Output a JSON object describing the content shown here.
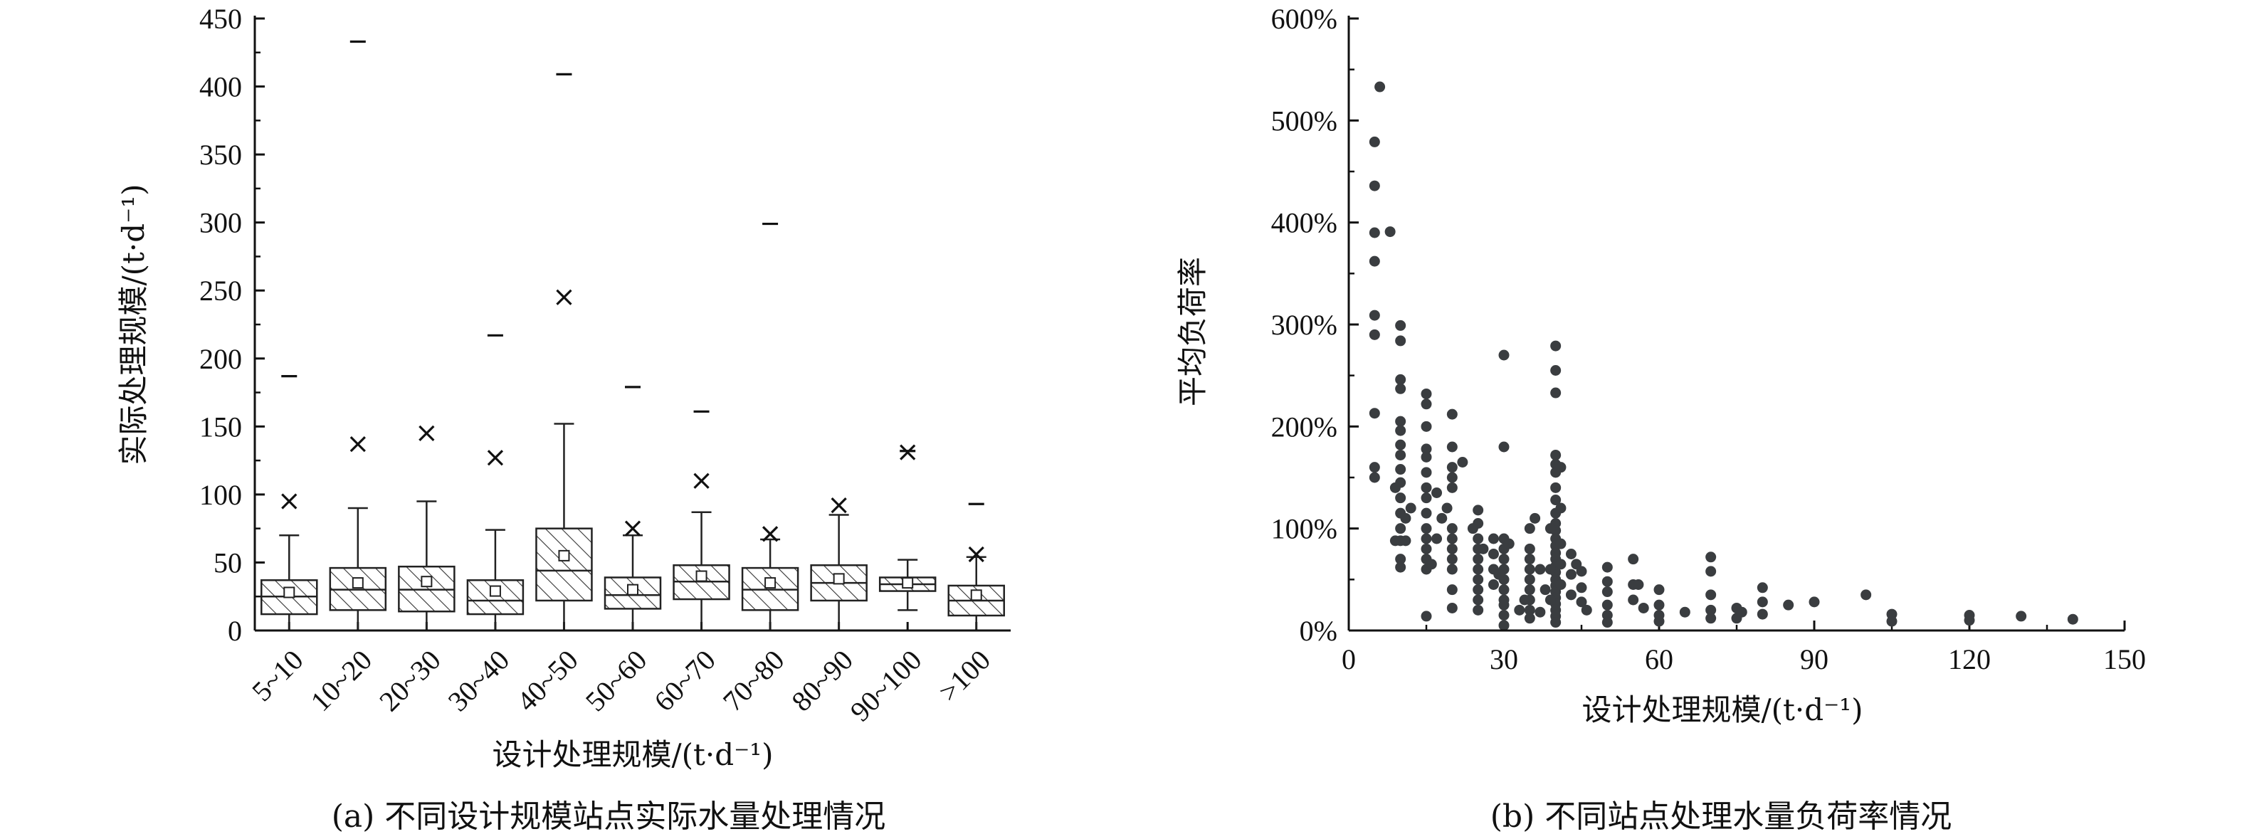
{
  "captions": {
    "a": "(a) 不同设计规模站点实际水量处理情况",
    "b": "(b) 不同站点处理水量负荷率情况"
  },
  "chart_data": [
    {
      "type": "box",
      "title": "",
      "xlabel": "设计处理规模/(t·d⁻¹)",
      "ylabel": "实际处理规模/(t·d⁻¹)",
      "ylim": [
        0,
        450
      ],
      "yticks": [
        "0",
        "50",
        "100",
        "150",
        "200",
        "250",
        "300",
        "350",
        "400",
        "450"
      ],
      "categories": [
        "5~10",
        "10~20",
        "20~30",
        "30~40",
        "40~50",
        "50~60",
        "60~70",
        "70~80",
        "80~90",
        "90~100",
        ">100"
      ],
      "boxes": [
        {
          "min": 0,
          "q1": 12,
          "median": 25,
          "q3": 37,
          "max": 70,
          "mean": 28,
          "p99": 95,
          "max_outlier": 187
        },
        {
          "min": 0,
          "q1": 15,
          "median": 30,
          "q3": 46,
          "max": 90,
          "mean": 35,
          "p99": 137,
          "max_outlier": 433
        },
        {
          "min": 0,
          "q1": 14,
          "median": 30,
          "q3": 47,
          "max": 95,
          "mean": 36,
          "p99": 145,
          "max_outlier": null
        },
        {
          "min": 0,
          "q1": 12,
          "median": 22,
          "q3": 37,
          "max": 74,
          "mean": 29,
          "p99": 127,
          "max_outlier": 217
        },
        {
          "min": 0,
          "q1": 22,
          "median": 44,
          "q3": 75,
          "max": 152,
          "mean": 55,
          "p99": 245,
          "max_outlier": 409
        },
        {
          "min": 0,
          "q1": 16,
          "median": 26,
          "q3": 39,
          "max": 70,
          "mean": 30,
          "p99": 75,
          "max_outlier": 179
        },
        {
          "min": 0,
          "q1": 23,
          "median": 36,
          "q3": 48,
          "max": 87,
          "mean": 40,
          "p99": 110,
          "max_outlier": 161
        },
        {
          "min": 0,
          "q1": 15,
          "median": 30,
          "q3": 46,
          "max": 67,
          "mean": 35,
          "p99": 71,
          "max_outlier": 299
        },
        {
          "min": 0,
          "q1": 22,
          "median": 35,
          "q3": 48,
          "max": 85,
          "mean": 38,
          "p99": 92,
          "max_outlier": null
        },
        {
          "min": 15,
          "q1": 29,
          "median": 34,
          "q3": 39,
          "max": 52,
          "mean": 35,
          "p99": 131,
          "max_outlier": 132
        },
        {
          "min": 0,
          "q1": 11,
          "median": 22,
          "q3": 33,
          "max": 54,
          "mean": 26,
          "p99": 56,
          "max_outlier": 93
        }
      ]
    },
    {
      "type": "scatter",
      "title": "",
      "xlabel": "设计处理规模/(t·d⁻¹)",
      "ylabel": "平均负荷率",
      "xlim": [
        0,
        150
      ],
      "ylim": [
        0,
        600
      ],
      "xticks": [
        "0",
        "30",
        "60",
        "90",
        "120",
        "150"
      ],
      "yticks": [
        "0%",
        "100%",
        "200%",
        "300%",
        "400%",
        "500%",
        "600%"
      ],
      "color": "#3a3d40",
      "points": [
        [
          6,
          533
        ],
        [
          5,
          479
        ],
        [
          5,
          436
        ],
        [
          8,
          391
        ],
        [
          5,
          390
        ],
        [
          5,
          362
        ],
        [
          5,
          309
        ],
        [
          5,
          290
        ],
        [
          5,
          213
        ],
        [
          5,
          160
        ],
        [
          5,
          150
        ],
        [
          10,
          299
        ],
        [
          10,
          284
        ],
        [
          10,
          246
        ],
        [
          10,
          237
        ],
        [
          10,
          205
        ],
        [
          10,
          196
        ],
        [
          10,
          182
        ],
        [
          10,
          172
        ],
        [
          10,
          158
        ],
        [
          10,
          145
        ],
        [
          10,
          130
        ],
        [
          10,
          115
        ],
        [
          10,
          100
        ],
        [
          10,
          88
        ],
        [
          10,
          70
        ],
        [
          10,
          62
        ],
        [
          9,
          140
        ],
        [
          9,
          88
        ],
        [
          11,
          110
        ],
        [
          12,
          120
        ],
        [
          11,
          88
        ],
        [
          15,
          232
        ],
        [
          15,
          222
        ],
        [
          15,
          200
        ],
        [
          15,
          178
        ],
        [
          15,
          170
        ],
        [
          15,
          155
        ],
        [
          15,
          140
        ],
        [
          15,
          130
        ],
        [
          15,
          115
        ],
        [
          15,
          100
        ],
        [
          15,
          90
        ],
        [
          15,
          80
        ],
        [
          15,
          70
        ],
        [
          15,
          60
        ],
        [
          15,
          14
        ],
        [
          17,
          135
        ],
        [
          16,
          65
        ],
        [
          20,
          212
        ],
        [
          20,
          180
        ],
        [
          20,
          160
        ],
        [
          20,
          150
        ],
        [
          20,
          140
        ],
        [
          20,
          100
        ],
        [
          20,
          90
        ],
        [
          20,
          80
        ],
        [
          20,
          70
        ],
        [
          20,
          60
        ],
        [
          20,
          40
        ],
        [
          20,
          22
        ],
        [
          22,
          165
        ],
        [
          18,
          110
        ],
        [
          17,
          90
        ],
        [
          19,
          120
        ],
        [
          25,
          118
        ],
        [
          25,
          105
        ],
        [
          25,
          90
        ],
        [
          25,
          80
        ],
        [
          25,
          70
        ],
        [
          25,
          60
        ],
        [
          25,
          50
        ],
        [
          25,
          40
        ],
        [
          25,
          30
        ],
        [
          25,
          20
        ],
        [
          26,
          80
        ],
        [
          24,
          100
        ],
        [
          28,
          90
        ],
        [
          28,
          75
        ],
        [
          28,
          60
        ],
        [
          28,
          45
        ],
        [
          30,
          270
        ],
        [
          30,
          180
        ],
        [
          30,
          90
        ],
        [
          30,
          80
        ],
        [
          30,
          70
        ],
        [
          30,
          60
        ],
        [
          30,
          50
        ],
        [
          30,
          40
        ],
        [
          30,
          30
        ],
        [
          30,
          25
        ],
        [
          30,
          15
        ],
        [
          30,
          5
        ],
        [
          31,
          85
        ],
        [
          29,
          55
        ],
        [
          33,
          20
        ],
        [
          34,
          30
        ],
        [
          35,
          100
        ],
        [
          35,
          80
        ],
        [
          35,
          70
        ],
        [
          35,
          60
        ],
        [
          35,
          50
        ],
        [
          35,
          40
        ],
        [
          35,
          30
        ],
        [
          35,
          20
        ],
        [
          35,
          12
        ],
        [
          36,
          110
        ],
        [
          37,
          60
        ],
        [
          38,
          40
        ],
        [
          37,
          18
        ],
        [
          40,
          279
        ],
        [
          40,
          255
        ],
        [
          40,
          233
        ],
        [
          40,
          172
        ],
        [
          40,
          163
        ],
        [
          40,
          155
        ],
        [
          40,
          140
        ],
        [
          40,
          128
        ],
        [
          40,
          115
        ],
        [
          40,
          105
        ],
        [
          40,
          98
        ],
        [
          40,
          90
        ],
        [
          40,
          83
        ],
        [
          40,
          76
        ],
        [
          40,
          70
        ],
        [
          40,
          63
        ],
        [
          40,
          57
        ],
        [
          40,
          50
        ],
        [
          40,
          44
        ],
        [
          40,
          38
        ],
        [
          40,
          32
        ],
        [
          40,
          26
        ],
        [
          40,
          20
        ],
        [
          40,
          14
        ],
        [
          40,
          8
        ],
        [
          41,
          160
        ],
        [
          41,
          120
        ],
        [
          41,
          85
        ],
        [
          41,
          65
        ],
        [
          41,
          45
        ],
        [
          39,
          100
        ],
        [
          39,
          60
        ],
        [
          39,
          30
        ],
        [
          43,
          75
        ],
        [
          43,
          55
        ],
        [
          43,
          35
        ],
        [
          44,
          65
        ],
        [
          45,
          58
        ],
        [
          45,
          42
        ],
        [
          45,
          28
        ],
        [
          46,
          20
        ],
        [
          50,
          62
        ],
        [
          50,
          48
        ],
        [
          50,
          38
        ],
        [
          50,
          25
        ],
        [
          50,
          15
        ],
        [
          50,
          8
        ],
        [
          55,
          70
        ],
        [
          55,
          45
        ],
        [
          55,
          30
        ],
        [
          56,
          45
        ],
        [
          57,
          22
        ],
        [
          60,
          40
        ],
        [
          60,
          25
        ],
        [
          60,
          15
        ],
        [
          60,
          9
        ],
        [
          65,
          18
        ],
        [
          70,
          72
        ],
        [
          70,
          58
        ],
        [
          70,
          35
        ],
        [
          70,
          20
        ],
        [
          70,
          12
        ],
        [
          75,
          22
        ],
        [
          75,
          12
        ],
        [
          76,
          18
        ],
        [
          80,
          42
        ],
        [
          80,
          28
        ],
        [
          80,
          16
        ],
        [
          85,
          25
        ],
        [
          90,
          28
        ],
        [
          100,
          35
        ],
        [
          105,
          16
        ],
        [
          105,
          9
        ],
        [
          120,
          15
        ],
        [
          120,
          10
        ],
        [
          130,
          14
        ],
        [
          140,
          11
        ]
      ]
    }
  ]
}
